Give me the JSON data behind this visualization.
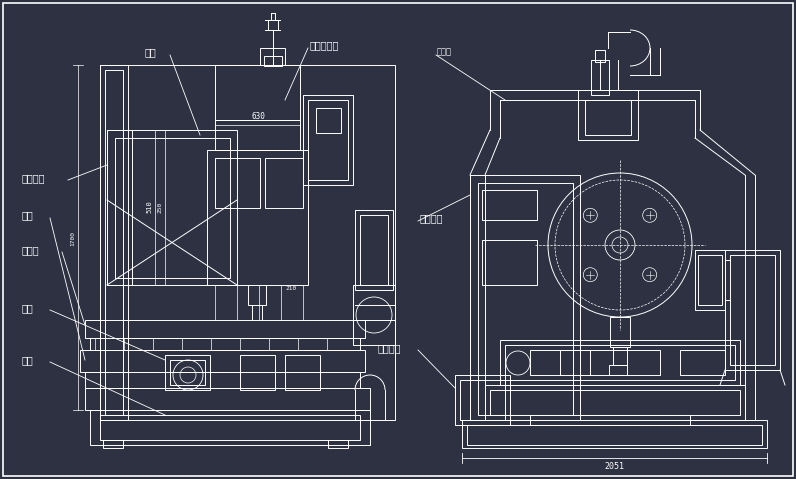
{
  "bg_color": "#2d3142",
  "line_color": "#ffffff",
  "labels": {
    "dao_ku": "刀库",
    "huan_dao": "换刀机械手",
    "zhu_zhou": "主轴箱",
    "dao_ku_zhijia": "刀裤托架",
    "hua_dao": "滑道",
    "gong_zuo_tai": "工作台",
    "bed": "床身",
    "ji_zuo": "机座",
    "kong_zhi": "控制面板",
    "run_hua": "润滑油箱",
    "dim_630": "630",
    "dim_510": "510",
    "dim_250": "250",
    "dim_210": "210",
    "dim_1100": "1700",
    "dim_2051": "2051"
  }
}
